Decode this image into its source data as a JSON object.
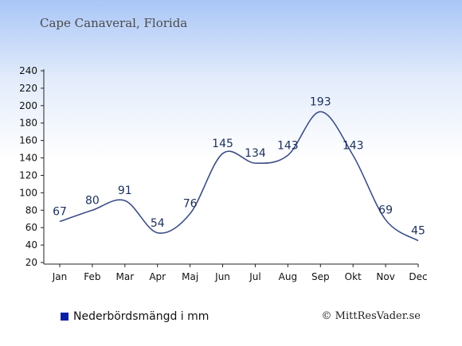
{
  "chart_data": {
    "type": "line",
    "title": "Cape Canaveral, Florida",
    "categories": [
      "Jan",
      "Feb",
      "Mar",
      "Apr",
      "Maj",
      "Jun",
      "Jul",
      "Aug",
      "Sep",
      "Okt",
      "Nov",
      "Dec"
    ],
    "series": [
      {
        "name": "Nederbördsmängd i mm",
        "values": [
          67,
          80,
          91,
          54,
          76,
          145,
          134,
          143,
          193,
          143,
          69,
          45
        ],
        "color": "#0a1fa8"
      }
    ],
    "yticks": [
      20,
      40,
      60,
      80,
      100,
      120,
      140,
      160,
      180,
      200,
      220,
      240
    ],
    "ylim": [
      20,
      240
    ],
    "grid": false,
    "legend_position": "bottom-left",
    "line_color": "#3d4f86"
  },
  "credit": "© MittResVader.se"
}
